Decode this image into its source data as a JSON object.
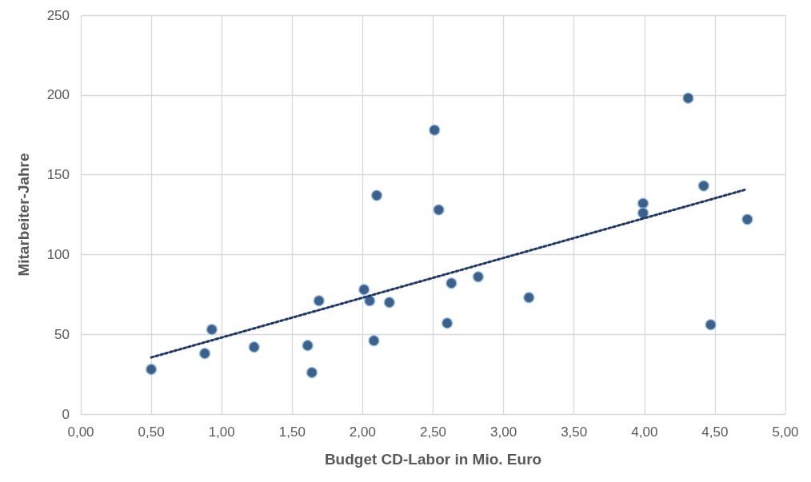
{
  "chart_data": {
    "type": "scatter",
    "xlabel": "Budget CD-Labor in Mio. Euro",
    "ylabel": "Mitarbeiter-Jahre",
    "xlim": [
      0,
      5
    ],
    "ylim": [
      0,
      250
    ],
    "xticks": [
      {
        "value": 0,
        "label": "0,00"
      },
      {
        "value": 0.5,
        "label": "0,50"
      },
      {
        "value": 1,
        "label": "1,00"
      },
      {
        "value": 1.5,
        "label": "1,50"
      },
      {
        "value": 2,
        "label": "2,00"
      },
      {
        "value": 2.5,
        "label": "2,50"
      },
      {
        "value": 3,
        "label": "3,00"
      },
      {
        "value": 3.5,
        "label": "3,50"
      },
      {
        "value": 4,
        "label": "4,00"
      },
      {
        "value": 4.5,
        "label": "4,50"
      },
      {
        "value": 5,
        "label": "5,00"
      }
    ],
    "yticks": [
      0,
      50,
      100,
      150,
      200,
      250
    ],
    "grid": true,
    "marker": "circle",
    "series": [
      {
        "color": "#0b3a6e",
        "x": [
          0.5,
          0.88,
          0.93,
          1.23,
          1.61,
          1.64,
          1.69,
          2.01,
          2.05,
          2.08,
          2.1,
          2.19,
          2.51,
          2.54,
          2.6,
          2.63,
          2.82,
          3.18,
          3.99,
          3.99,
          4.31,
          4.42,
          4.47,
          4.73
        ],
        "values": [
          28,
          38,
          53,
          42,
          43,
          26,
          71,
          78,
          71,
          46,
          137,
          70,
          178,
          128,
          57,
          82,
          86,
          73,
          132,
          126,
          198,
          143,
          56,
          122
        ]
      },
      {
        "type": "line",
        "color": "#1f3864",
        "line_style": "dotted",
        "marker": "none",
        "x": [
          0.5,
          4.71
        ],
        "values": [
          35.5,
          140.5
        ]
      }
    ]
  }
}
